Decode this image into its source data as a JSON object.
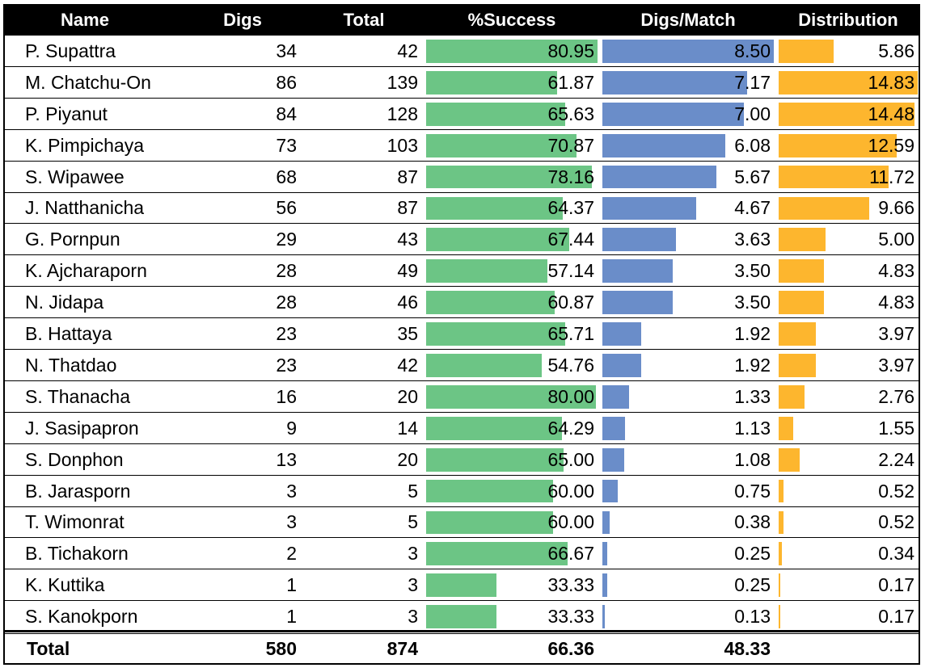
{
  "headers": {
    "name": "Name",
    "digs": "Digs",
    "total": "Total",
    "success": "%Success",
    "digs_match": "Digs/Match",
    "distribution": "Distribution"
  },
  "colors": {
    "header_bg": "#000000",
    "success_bar": "#6cc585",
    "digs_match_bar": "#6a8dc9",
    "distribution_bar": "#fdb62e"
  },
  "rows": [
    {
      "name": "P. Supattra",
      "digs": "34",
      "total": "42",
      "success": "80.95",
      "digs_match": "8.50",
      "distribution": "5.86"
    },
    {
      "name": "M. Chatchu-On",
      "digs": "86",
      "total": "139",
      "success": "61.87",
      "digs_match": "7.17",
      "distribution": "14.83"
    },
    {
      "name": "P. Piyanut",
      "digs": "84",
      "total": "128",
      "success": "65.63",
      "digs_match": "7.00",
      "distribution": "14.48"
    },
    {
      "name": "K. Pimpichaya",
      "digs": "73",
      "total": "103",
      "success": "70.87",
      "digs_match": "6.08",
      "distribution": "12.59"
    },
    {
      "name": "S. Wipawee",
      "digs": "68",
      "total": "87",
      "success": "78.16",
      "digs_match": "5.67",
      "distribution": "11.72"
    },
    {
      "name": "J. Natthanicha",
      "digs": "56",
      "total": "87",
      "success": "64.37",
      "digs_match": "4.67",
      "distribution": "9.66"
    },
    {
      "name": "G. Pornpun",
      "digs": "29",
      "total": "43",
      "success": "67.44",
      "digs_match": "3.63",
      "distribution": "5.00"
    },
    {
      "name": "K. Ajcharaporn",
      "digs": "28",
      "total": "49",
      "success": "57.14",
      "digs_match": "3.50",
      "distribution": "4.83"
    },
    {
      "name": "N. Jidapa",
      "digs": "28",
      "total": "46",
      "success": "60.87",
      "digs_match": "3.50",
      "distribution": "4.83"
    },
    {
      "name": "B. Hattaya",
      "digs": "23",
      "total": "35",
      "success": "65.71",
      "digs_match": "1.92",
      "distribution": "3.97"
    },
    {
      "name": "N. Thatdao",
      "digs": "23",
      "total": "42",
      "success": "54.76",
      "digs_match": "1.92",
      "distribution": "3.97"
    },
    {
      "name": "S. Thanacha",
      "digs": "16",
      "total": "20",
      "success": "80.00",
      "digs_match": "1.33",
      "distribution": "2.76"
    },
    {
      "name": "J. Sasipapron",
      "digs": "9",
      "total": "14",
      "success": "64.29",
      "digs_match": "1.13",
      "distribution": "1.55"
    },
    {
      "name": "S. Donphon",
      "digs": "13",
      "total": "20",
      "success": "65.00",
      "digs_match": "1.08",
      "distribution": "2.24"
    },
    {
      "name": "B. Jarasporn",
      "digs": "3",
      "total": "5",
      "success": "60.00",
      "digs_match": "0.75",
      "distribution": "0.52"
    },
    {
      "name": "T. Wimonrat",
      "digs": "3",
      "total": "5",
      "success": "60.00",
      "digs_match": "0.38",
      "distribution": "0.52"
    },
    {
      "name": "B. Tichakorn",
      "digs": "2",
      "total": "3",
      "success": "66.67",
      "digs_match": "0.25",
      "distribution": "0.34"
    },
    {
      "name": "K. Kuttika",
      "digs": "1",
      "total": "3",
      "success": "33.33",
      "digs_match": "0.25",
      "distribution": "0.17"
    },
    {
      "name": "S. Kanokporn",
      "digs": "1",
      "total": "3",
      "success": "33.33",
      "digs_match": "0.13",
      "distribution": "0.17"
    }
  ],
  "totals": {
    "label": "Total",
    "digs": "580",
    "total": "874",
    "success": "66.36",
    "digs_match": "48.33",
    "distribution": ""
  },
  "chart_data": {
    "type": "table",
    "columns": [
      "Name",
      "Digs",
      "Total",
      "%Success",
      "Digs/Match",
      "Distribution"
    ],
    "bar_columns": {
      "%Success": {
        "color": "#6cc585",
        "max": 80.95
      },
      "Digs/Match": {
        "color": "#6a8dc9",
        "max": 8.5
      },
      "Distribution": {
        "color": "#fdb62e",
        "max": 14.83
      }
    },
    "rows": [
      [
        "P. Supattra",
        34,
        42,
        80.95,
        8.5,
        5.86
      ],
      [
        "M. Chatchu-On",
        86,
        139,
        61.87,
        7.17,
        14.83
      ],
      [
        "P. Piyanut",
        84,
        128,
        65.63,
        7.0,
        14.48
      ],
      [
        "K. Pimpichaya",
        73,
        103,
        70.87,
        6.08,
        12.59
      ],
      [
        "S. Wipawee",
        68,
        87,
        78.16,
        5.67,
        11.72
      ],
      [
        "J. Natthanicha",
        56,
        87,
        64.37,
        4.67,
        9.66
      ],
      [
        "G. Pornpun",
        29,
        43,
        67.44,
        3.63,
        5.0
      ],
      [
        "K. Ajcharaporn",
        28,
        49,
        57.14,
        3.5,
        4.83
      ],
      [
        "N. Jidapa",
        28,
        46,
        60.87,
        3.5,
        4.83
      ],
      [
        "B. Hattaya",
        23,
        35,
        65.71,
        1.92,
        3.97
      ],
      [
        "N. Thatdao",
        23,
        42,
        54.76,
        1.92,
        3.97
      ],
      [
        "S. Thanacha",
        16,
        20,
        80.0,
        1.33,
        2.76
      ],
      [
        "J. Sasipapron",
        9,
        14,
        64.29,
        1.13,
        1.55
      ],
      [
        "S. Donphon",
        13,
        20,
        65.0,
        1.08,
        2.24
      ],
      [
        "B. Jarasporn",
        3,
        5,
        60.0,
        0.75,
        0.52
      ],
      [
        "T. Wimonrat",
        3,
        5,
        60.0,
        0.38,
        0.52
      ],
      [
        "B. Tichakorn",
        2,
        3,
        66.67,
        0.25,
        0.34
      ],
      [
        "K. Kuttika",
        1,
        3,
        33.33,
        0.25,
        0.17
      ],
      [
        "S. Kanokporn",
        1,
        3,
        33.33,
        0.13,
        0.17
      ]
    ],
    "total_row": [
      "Total",
      580,
      874,
      66.36,
      48.33,
      null
    ]
  }
}
